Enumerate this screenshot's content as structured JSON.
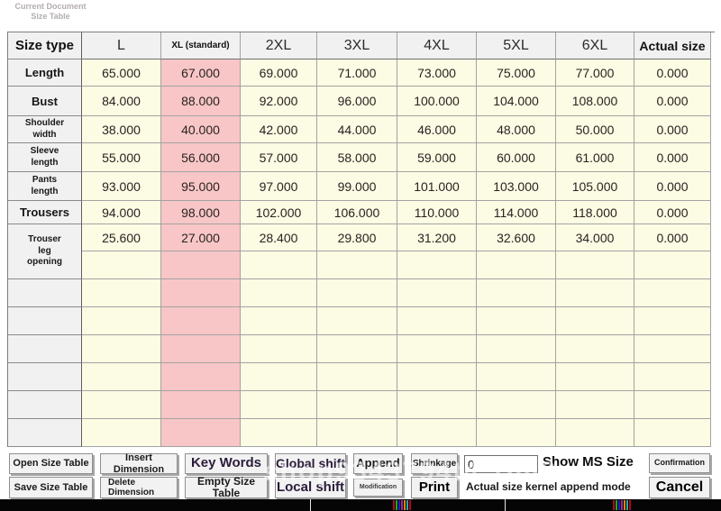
{
  "header_note": {
    "line1": "Current Document",
    "line2": "Size Table"
  },
  "table": {
    "columns": [
      {
        "label": "Size type",
        "style": "corner"
      },
      {
        "label": "L",
        "style": "size"
      },
      {
        "label": "XL (standard)",
        "style": "standard",
        "highlight": true
      },
      {
        "label": "2XL",
        "style": "size"
      },
      {
        "label": "3XL",
        "style": "size"
      },
      {
        "label": "4XL",
        "style": "size"
      },
      {
        "label": "5XL",
        "style": "size"
      },
      {
        "label": "6XL",
        "style": "size"
      },
      {
        "label": "Actual size",
        "style": "actual"
      }
    ],
    "rows": [
      {
        "label": "Length",
        "label_size": "lg",
        "values": [
          "65.000",
          "67.000",
          "69.000",
          "71.000",
          "73.000",
          "75.000",
          "77.000",
          "0.000"
        ]
      },
      {
        "label": "Bust",
        "label_size": "lg",
        "values": [
          "84.000",
          "88.000",
          "92.000",
          "96.000",
          "100.000",
          "104.000",
          "108.000",
          "0.000"
        ]
      },
      {
        "label": "Shoulder\nwidth",
        "label_size": "sm",
        "values": [
          "38.000",
          "40.000",
          "42.000",
          "44.000",
          "46.000",
          "48.000",
          "50.000",
          "0.000"
        ]
      },
      {
        "label": "Sleeve\nlength",
        "label_size": "sm",
        "values": [
          "55.000",
          "56.000",
          "57.000",
          "58.000",
          "59.000",
          "60.000",
          "61.000",
          "0.000"
        ]
      },
      {
        "label": "Pants\nlength",
        "label_size": "sm",
        "values": [
          "93.000",
          "95.000",
          "97.000",
          "99.000",
          "101.000",
          "103.000",
          "105.000",
          "0.000"
        ]
      },
      {
        "label": "Trousers",
        "label_size": "lg",
        "values": [
          "94.000",
          "98.000",
          "102.000",
          "106.000",
          "110.000",
          "114.000",
          "118.000",
          "0.000"
        ]
      },
      {
        "label": "Trouser\nleg\nopening",
        "label_size": "sm",
        "values": [
          "25.600",
          "27.000",
          "28.400",
          "29.800",
          "31.200",
          "32.600",
          "34.000",
          "0.000"
        ]
      }
    ],
    "colors": {
      "cell_yellow": "#FCFBE3",
      "cell_pink": "#F8C6C6",
      "label_gray": "#F1F1F1"
    }
  },
  "buttons": {
    "open_size_table": "Open Size Table",
    "save_size_table": "Save Size Table",
    "insert_dimension": "Insert Dimension",
    "delete_dimension": "Delete\nDimension",
    "key_words": "Key Words",
    "empty_size_table": "Empty Size Table",
    "global_shift": "Global shift",
    "local_shift": "Local shift",
    "append": "Append",
    "modification": "Modification",
    "shrinkage": "Shrinkage",
    "print": "Print",
    "confirmation": "Confirmation",
    "cancel": "Cancel"
  },
  "controls": {
    "shrink_input_value": "0",
    "show_ms_size_label": "Show MS Size",
    "append_mode_label": "Actual size kernel append mode"
  },
  "watermark_text": "shop9343794t4.1688.com"
}
